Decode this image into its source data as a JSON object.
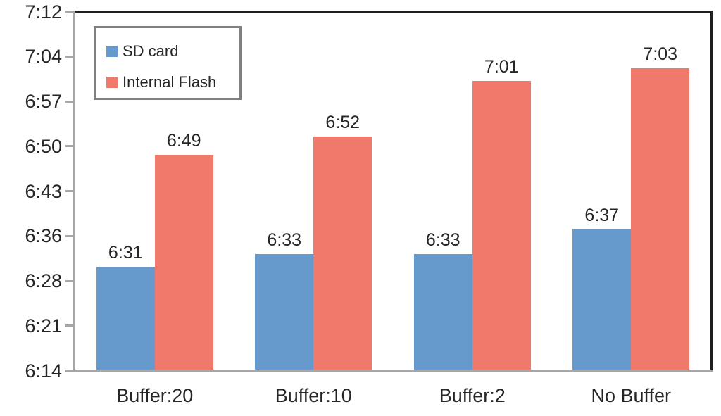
{
  "chart_data": {
    "type": "bar",
    "title": "",
    "categories": [
      "Buffer:20",
      "Buffer:10",
      "Buffer:2",
      "No Buffer"
    ],
    "series": [
      {
        "name": "SD card",
        "color": "#6699CC",
        "labels": [
          "6:31",
          "6:33",
          "6:33",
          "6:37"
        ],
        "values_minutes": [
          391,
          393,
          393,
          397
        ]
      },
      {
        "name": "Internal Flash",
        "color": "#F0796B",
        "labels": [
          "6:49",
          "6:52",
          "7:01",
          "7:03"
        ],
        "values_minutes": [
          409,
          412,
          421,
          423
        ]
      }
    ],
    "y_axis": {
      "tick_labels": [
        "7:12",
        "7:04",
        "6:57",
        "6:50",
        "6:43",
        "6:36",
        "6:28",
        "6:21",
        "6:14"
      ],
      "ylim_minutes": [
        374.4,
        432
      ]
    },
    "xlabel": "",
    "ylabel": "",
    "grid": false,
    "legend_position": "top-left",
    "axis_color": "#a6a6a6",
    "frame_color": "#1f1f1f",
    "text_color": "#262626"
  }
}
